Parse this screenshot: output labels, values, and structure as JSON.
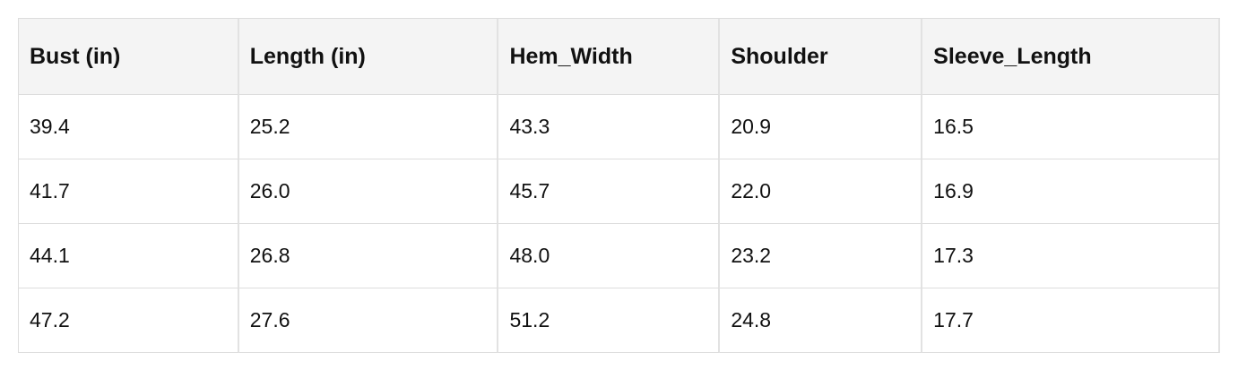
{
  "table": {
    "header": [
      "Bust (in)",
      "Length (in)",
      "Hem_Width",
      "Shoulder",
      "Sleeve_Length"
    ],
    "rows": [
      [
        "39.4",
        "25.2",
        "43.3",
        "20.9",
        "16.5"
      ],
      [
        "41.7",
        "26.0",
        "45.7",
        "22.0",
        "16.9"
      ],
      [
        "44.1",
        "26.8",
        "48.0",
        "23.2",
        "17.3"
      ],
      [
        "47.2",
        "27.6",
        "51.2",
        "24.8",
        "17.7"
      ]
    ]
  }
}
